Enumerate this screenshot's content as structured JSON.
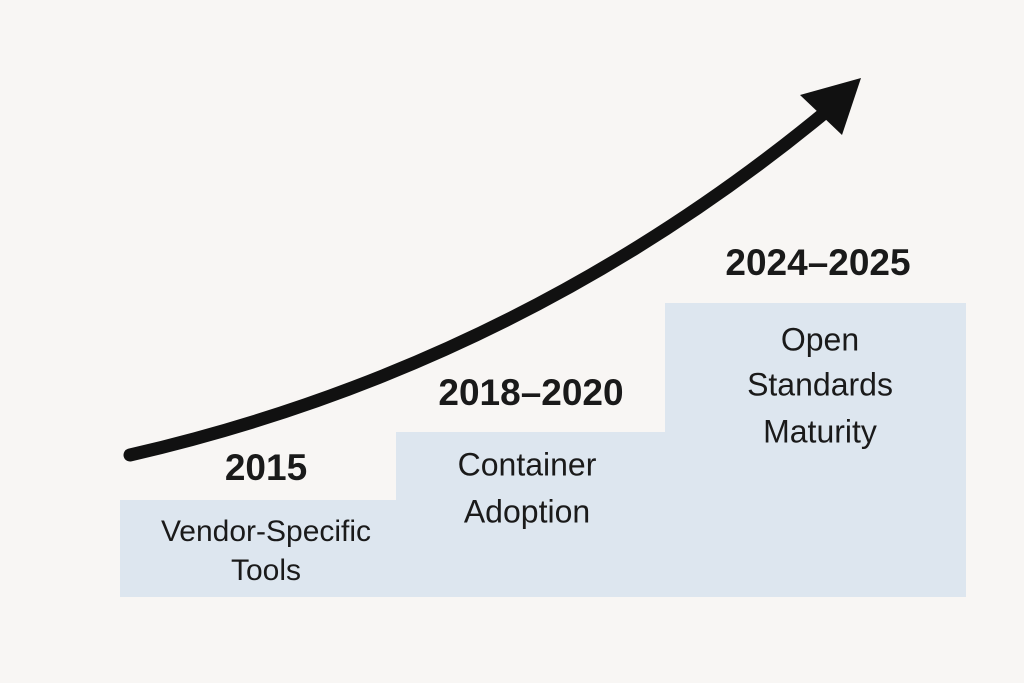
{
  "steps": [
    {
      "year": "2015",
      "label_lines": [
        "Vendor-Specific",
        "Tools"
      ]
    },
    {
      "year": "2018–2020",
      "label_lines": [
        "Container",
        "Adoption"
      ]
    },
    {
      "year": "2024–2025",
      "label_lines": [
        "Open",
        "Standards",
        "Maturity"
      ]
    }
  ]
}
